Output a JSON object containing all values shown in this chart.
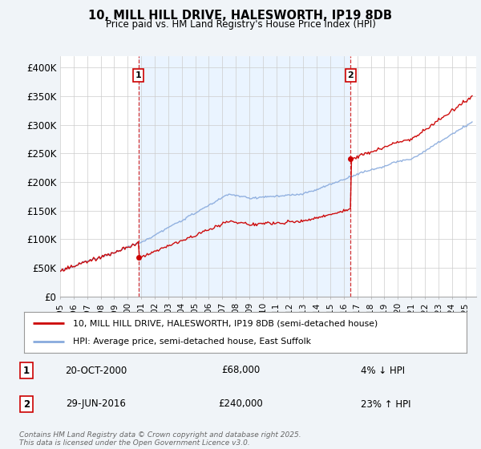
{
  "title": "10, MILL HILL DRIVE, HALESWORTH, IP19 8DB",
  "subtitle": "Price paid vs. HM Land Registry's House Price Index (HPI)",
  "background_color": "#f0f4f8",
  "plot_background": "#ffffff",
  "plot_fill_between_color": "#ddeeff",
  "ylabel": "",
  "xlabel": "",
  "ylim": [
    0,
    420000
  ],
  "yticks": [
    0,
    50000,
    100000,
    150000,
    200000,
    250000,
    300000,
    350000,
    400000
  ],
  "ytick_labels": [
    "£0",
    "£50K",
    "£100K",
    "£150K",
    "£200K",
    "£250K",
    "£300K",
    "£350K",
    "£400K"
  ],
  "legend_line1": "10, MILL HILL DRIVE, HALESWORTH, IP19 8DB (semi-detached house)",
  "legend_line2": "HPI: Average price, semi-detached house, East Suffolk",
  "line_color_price": "#cc0000",
  "line_color_hpi": "#88aadd",
  "purchase1_date": "20-OCT-2000",
  "purchase1_price": 68000,
  "purchase1_hpi": "4% ↓ HPI",
  "purchase2_date": "29-JUN-2016",
  "purchase2_price": 240000,
  "purchase2_hpi": "23% ↑ HPI",
  "footer": "Contains HM Land Registry data © Crown copyright and database right 2025.\nThis data is licensed under the Open Government Licence v3.0.",
  "vline1_x": 2000.8,
  "vline2_x": 2016.5,
  "marker1_x": 2000.8,
  "marker1_y": 68000,
  "marker2_x": 2016.5,
  "marker2_y": 240000,
  "xlim_left": 1995.0,
  "xlim_right": 2025.8
}
